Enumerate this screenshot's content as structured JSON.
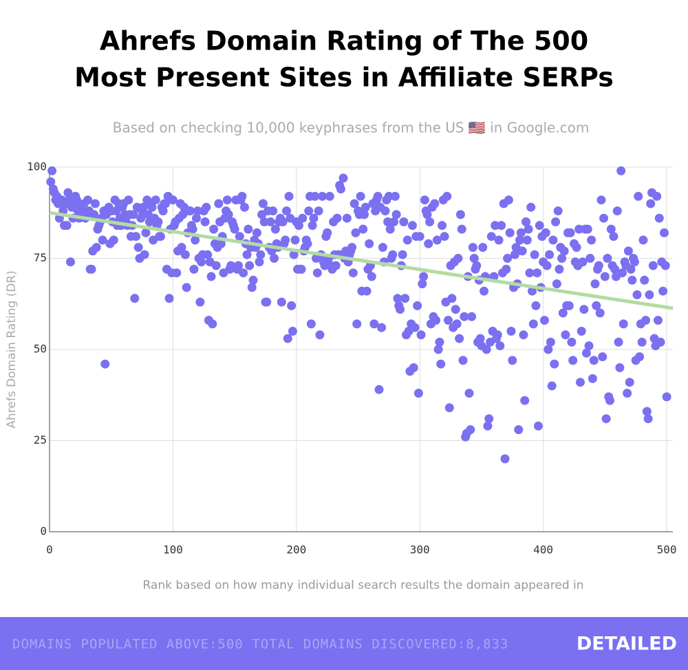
{
  "chart_data": {
    "type": "scatter",
    "title": [
      "Ahrefs Domain Rating of The 500",
      "Most Present Sites in Affiliate SERPs"
    ],
    "subtitle": "Based on checking 10,000 keyphrases from the US 🇺🇸 in Google.com",
    "x_label": "Rank based on how many individual search results the domain appeared in",
    "y_label": "Ahrefs Domain Rating (DR)",
    "xlim": [
      0,
      505
    ],
    "ylim": [
      0,
      100
    ],
    "xticks": [
      0,
      100,
      200,
      300,
      400,
      500
    ],
    "yticks": [
      0,
      25,
      50,
      75,
      100
    ],
    "grid": true,
    "color": "#7b70f0",
    "series": [
      {
        "color": "#7b70f0",
        "x": [
          1,
          2,
          3,
          4,
          5,
          6,
          7,
          8,
          9,
          10,
          11,
          12,
          13,
          14,
          15,
          16,
          17,
          18,
          19,
          20,
          21,
          22,
          23,
          24,
          25,
          26,
          27,
          28,
          29,
          30,
          31,
          32,
          33,
          34,
          35,
          36,
          37,
          38,
          39,
          40,
          41,
          42,
          43,
          44,
          45,
          46,
          47,
          48,
          49,
          50,
          51,
          52,
          53,
          54,
          55,
          56,
          57,
          58,
          59,
          60,
          61,
          62,
          63,
          64,
          65,
          66,
          67,
          68,
          69,
          70,
          71,
          72,
          73,
          74,
          75,
          76,
          77,
          78,
          79,
          80,
          81,
          82,
          83,
          84,
          85,
          86,
          87,
          88,
          89,
          90,
          91,
          92,
          93,
          94,
          95,
          96,
          97,
          98,
          99,
          100,
          101,
          102,
          103,
          104,
          105,
          106,
          107,
          108,
          109,
          110,
          111,
          112,
          113,
          114,
          115,
          116,
          117,
          118,
          119,
          120,
          121,
          122,
          123,
          124,
          125,
          126,
          127,
          128,
          129,
          130,
          131,
          132,
          133,
          134,
          135,
          136,
          137,
          138,
          139,
          140,
          141,
          142,
          143,
          144,
          145,
          146,
          147,
          148,
          149,
          150,
          151,
          152,
          153,
          154,
          155,
          156,
          157,
          158,
          159,
          160,
          161,
          162,
          163,
          164,
          165,
          166,
          167,
          168,
          169,
          170,
          171,
          172,
          173,
          174,
          175,
          176,
          177,
          178,
          179,
          180,
          181,
          182,
          183,
          184,
          185,
          186,
          187,
          188,
          189,
          190,
          191,
          192,
          193,
          194,
          195,
          196,
          197,
          198,
          199,
          200,
          201,
          202,
          203,
          204,
          205,
          206,
          207,
          208,
          209,
          210,
          211,
          212,
          213,
          214,
          215,
          216,
          217,
          218,
          219,
          220,
          221,
          222,
          223,
          224,
          225,
          226,
          227,
          228,
          229,
          230,
          231,
          232,
          233,
          234,
          235,
          236,
          237,
          238,
          239,
          240,
          241,
          242,
          243,
          244,
          245,
          246,
          247,
          248,
          249,
          250,
          251,
          252,
          253,
          254,
          255,
          256,
          257,
          258,
          259,
          260,
          261,
          262,
          263,
          264,
          265,
          266,
          267,
          268,
          269,
          270,
          271,
          272,
          273,
          274,
          275,
          276,
          277,
          278,
          279,
          280,
          281,
          282,
          283,
          284,
          285,
          286,
          287,
          288,
          289,
          290,
          291,
          292,
          293,
          294,
          295,
          296,
          297,
          298,
          299,
          300,
          301,
          302,
          303,
          304,
          305,
          306,
          307,
          308,
          309,
          310,
          311,
          312,
          313,
          314,
          315,
          316,
          317,
          318,
          319,
          320,
          321,
          322,
          323,
          324,
          325,
          326,
          327,
          328,
          329,
          330,
          331,
          332,
          333,
          334,
          335,
          336,
          337,
          338,
          339,
          340,
          341,
          342,
          343,
          344,
          345,
          346,
          347,
          348,
          349,
          350,
          351,
          352,
          353,
          354,
          355,
          356,
          357,
          358,
          359,
          360,
          361,
          362,
          363,
          364,
          365,
          366,
          367,
          368,
          369,
          370,
          371,
          372,
          373,
          374,
          375,
          376,
          377,
          378,
          379,
          380,
          381,
          382,
          383,
          384,
          385,
          386,
          387,
          388,
          389,
          390,
          391,
          392,
          393,
          394,
          395,
          396,
          397,
          398,
          399,
          400,
          401,
          402,
          403,
          404,
          405,
          406,
          407,
          408,
          409,
          410,
          411,
          412,
          413,
          414,
          415,
          416,
          417,
          418,
          419,
          420,
          421,
          422,
          423,
          424,
          425,
          426,
          427,
          428,
          429,
          430,
          431,
          432,
          433,
          434,
          435,
          436,
          437,
          438,
          439,
          440,
          441,
          442,
          443,
          444,
          445,
          446,
          447,
          448,
          449,
          450,
          451,
          452,
          453,
          454,
          455,
          456,
          457,
          458,
          459,
          460,
          461,
          462,
          463,
          464,
          465,
          466,
          467,
          468,
          469,
          470,
          471,
          472,
          473,
          474,
          475,
          476,
          477,
          478,
          479,
          480,
          481,
          482,
          483,
          484,
          485,
          486,
          487,
          488,
          489,
          490,
          491,
          492,
          493,
          494,
          495,
          496,
          497,
          498,
          499,
          500
        ],
        "values": [
          96,
          99,
          94,
          93,
          91,
          92,
          90,
          86,
          90,
          91,
          88,
          84,
          90,
          84,
          93,
          91,
          74,
          89,
          86,
          90,
          92,
          91,
          88,
          86,
          87,
          89,
          88,
          90,
          86,
          87,
          91,
          88,
          72,
          72,
          77,
          87,
          90,
          78,
          83,
          84,
          85,
          86,
          80,
          88,
          46,
          87,
          88,
          89,
          79,
          88,
          85,
          80,
          91,
          88,
          84,
          90,
          86,
          84,
          89,
          90,
          87,
          85,
          84,
          91,
          87,
          81,
          84,
          87,
          64,
          81,
          89,
          78,
          75,
          86,
          88,
          89,
          76,
          82,
          91,
          87,
          85,
          90,
          89,
          80,
          86,
          91,
          84,
          85,
          81,
          81,
          89,
          88,
          90,
          90,
          72,
          92,
          64,
          83,
          71,
          91,
          84,
          85,
          71,
          77,
          86,
          90,
          78,
          87,
          89,
          76,
          67,
          82,
          88,
          88,
          84,
          83,
          72,
          80,
          86,
          88,
          75,
          63,
          74,
          76,
          88,
          85,
          89,
          76,
          58,
          74,
          70,
          57,
          83,
          79,
          73,
          78,
          90,
          85,
          79,
          81,
          71,
          86,
          88,
          91,
          87,
          72,
          73,
          85,
          84,
          83,
          91,
          72,
          73,
          81,
          91,
          92,
          71,
          89,
          79,
          76,
          83,
          73,
          78,
          67,
          69,
          80,
          78,
          82,
          79,
          74,
          76,
          87,
          90,
          85,
          63,
          63,
          88,
          78,
          85,
          77,
          88,
          75,
          83,
          79,
          78,
          85,
          86,
          63,
          85,
          79,
          80,
          88,
          53,
          92,
          86,
          62,
          55,
          76,
          80,
          85,
          72,
          84,
          72,
          72,
          86,
          77,
          78,
          80,
          79,
          88,
          92,
          57,
          84,
          86,
          92,
          75,
          71,
          88,
          54,
          76,
          92,
          74,
          73,
          81,
          82,
          75,
          92,
          73,
          72,
          85,
          76,
          73,
          86,
          76,
          95,
          94,
          76,
          97,
          75,
          77,
          86,
          74,
          76,
          77,
          78,
          71,
          90,
          82,
          57,
          88,
          87,
          92,
          66,
          83,
          87,
          89,
          66,
          72,
          79,
          73,
          70,
          90,
          57,
          88,
          91,
          92,
          39,
          89,
          56,
          78,
          74,
          88,
          91,
          85,
          92,
          83,
          75,
          76,
          85,
          92,
          87,
          64,
          62,
          61,
          73,
          76,
          85,
          64,
          54,
          80,
          55,
          44,
          57,
          84,
          45,
          56,
          81,
          62,
          38,
          81,
          54,
          68,
          70,
          91,
          88,
          87,
          79,
          85,
          57,
          89,
          59,
          90,
          58,
          80,
          50,
          52,
          46,
          84,
          91,
          81,
          63,
          92,
          58,
          34,
          73,
          64,
          56,
          74,
          61,
          57,
          75,
          53,
          87,
          83,
          47,
          59,
          26,
          27,
          70,
          38,
          28,
          59,
          78,
          75,
          72,
          73,
          52,
          69,
          53,
          51,
          78,
          66,
          70,
          50,
          29,
          31,
          52,
          81,
          55,
          70,
          84,
          53,
          54,
          80,
          51,
          84,
          71,
          90,
          20,
          72,
          75,
          91,
          82,
          55,
          47,
          67,
          76,
          78,
          68,
          28,
          80,
          82,
          77,
          54,
          36,
          85,
          80,
          83,
          71,
          89,
          66,
          57,
          76,
          62,
          71,
          29,
          84,
          67,
          81,
          74,
          58,
          82,
          73,
          50,
          76,
          52,
          40,
          80,
          46,
          85,
          68,
          88,
          72,
          78,
          75,
          60,
          77,
          54,
          62,
          82,
          62,
          82,
          52,
          47,
          79,
          74,
          78,
          73,
          83,
          41,
          55,
          74,
          61,
          83,
          49,
          83,
          51,
          75,
          80,
          42,
          47,
          68,
          62,
          72,
          73,
          60,
          91,
          48,
          86,
          70,
          31,
          75,
          37,
          36,
          83,
          73,
          81,
          72,
          70,
          88,
          52,
          45,
          99,
          71,
          57,
          74,
          73,
          38,
          77,
          41,
          72,
          69,
          75,
          74,
          47,
          65,
          92,
          48,
          57,
          52,
          80,
          69,
          58,
          33,
          31,
          65,
          90,
          93,
          73,
          53,
          51,
          92,
          58,
          86,
          52,
          74,
          66,
          82,
          73,
          37
        ]
      }
    ],
    "trend": {
      "color": "#b3dba3",
      "x": [
        0,
        505
      ],
      "y": [
        87.5,
        61.3
      ]
    }
  },
  "footer": {
    "stats": "DOMAINS POPULATED ABOVE:500 TOTAL DOMAINS DISCOVERED:8,833",
    "brand": "DETAILED"
  }
}
